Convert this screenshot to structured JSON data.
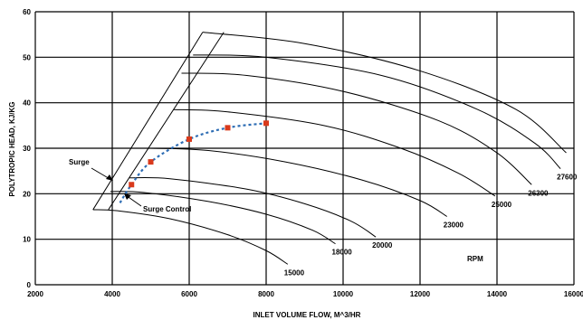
{
  "chart_data": {
    "type": "line",
    "title": "",
    "xlabel": "INLET VOLUME FLOW, M^3/HR",
    "ylabel": "POLYTROPIC HEAD, KJ/KG",
    "xlim": [
      2000,
      16000
    ],
    "ylim": [
      0,
      60
    ],
    "x_ticks": [
      2000,
      4000,
      6000,
      8000,
      10000,
      12000,
      14000,
      16000
    ],
    "y_ticks": [
      0,
      10,
      20,
      30,
      40,
      50,
      60
    ],
    "grid": true,
    "speed_unit_label": "RPM",
    "series": [
      {
        "name": "15000",
        "points": [
          [
            3500,
            16.5
          ],
          [
            4200,
            16.2
          ],
          [
            5500,
            14.5
          ],
          [
            7000,
            11
          ],
          [
            8000,
            7.5
          ],
          [
            8560,
            4.5
          ]
        ]
      },
      {
        "name": "18000",
        "points": [
          [
            3950,
            20.5
          ],
          [
            4800,
            20.3
          ],
          [
            6500,
            18.3
          ],
          [
            8000,
            15.5
          ],
          [
            9200,
            12
          ],
          [
            9800,
            9
          ]
        ]
      },
      {
        "name": "20000",
        "points": [
          [
            4450,
            23.5
          ],
          [
            5500,
            23.3
          ],
          [
            7500,
            21
          ],
          [
            9000,
            17.8
          ],
          [
            10200,
            14
          ],
          [
            10850,
            10.5
          ]
        ]
      },
      {
        "name": "23000",
        "points": [
          [
            5000,
            30
          ],
          [
            6500,
            29.5
          ],
          [
            8500,
            27
          ],
          [
            10500,
            23
          ],
          [
            12000,
            18.5
          ],
          [
            12700,
            15
          ]
        ]
      },
      {
        "name": "25000",
        "points": [
          [
            5600,
            38.5
          ],
          [
            7000,
            38
          ],
          [
            9500,
            35
          ],
          [
            11500,
            30
          ],
          [
            13000,
            24.5
          ],
          [
            13950,
            19.5
          ]
        ]
      },
      {
        "name": "26300",
        "points": [
          [
            5800,
            46.5
          ],
          [
            7500,
            46
          ],
          [
            10000,
            42.5
          ],
          [
            12500,
            36
          ],
          [
            14000,
            29
          ],
          [
            14900,
            22
          ]
        ]
      },
      {
        "name": "27600",
        "points": [
          [
            6100,
            50.5
          ],
          [
            8000,
            50
          ],
          [
            11000,
            46
          ],
          [
            13500,
            38.5
          ],
          [
            15000,
            31
          ],
          [
            15650,
            25.5
          ]
        ]
      },
      {
        "name": "",
        "points": [
          [
            6350,
            55.5
          ],
          [
            9000,
            53
          ],
          [
            12000,
            47
          ],
          [
            14500,
            38.5
          ],
          [
            15800,
            29
          ]
        ]
      }
    ],
    "surge_line": [
      [
        3500,
        16.5
      ],
      [
        6350,
        55.5
      ]
    ],
    "surge_control_line": [
      [
        3900,
        16.5
      ],
      [
        6900,
        55.5
      ]
    ],
    "control_points": {
      "x": [
        4500,
        5000,
        6000,
        7000,
        8000
      ],
      "y": [
        22,
        27,
        32,
        34.5,
        35.5
      ]
    },
    "annotations": {
      "surge": "Surge",
      "surge_control": "Surge Control"
    }
  }
}
